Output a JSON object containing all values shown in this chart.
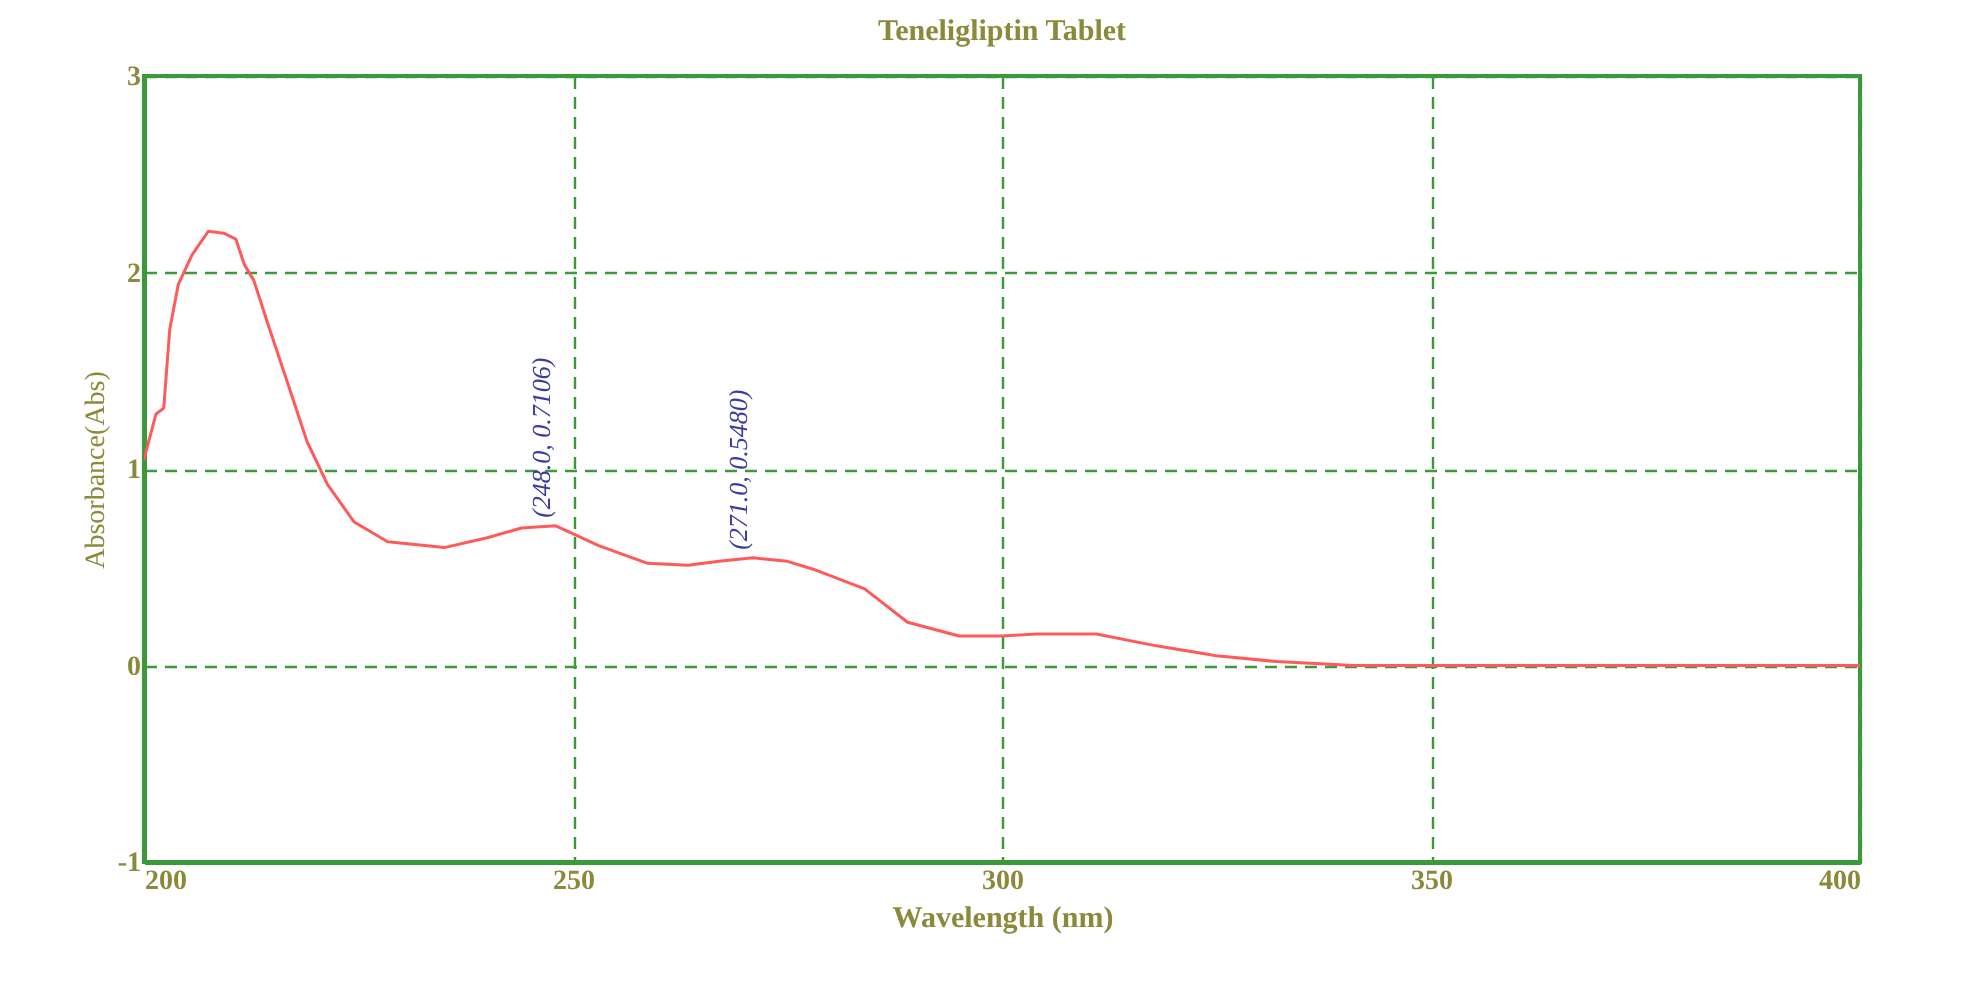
{
  "chart_data": {
    "type": "line",
    "title": "Teneligliptin Tablet",
    "xlabel": "Wavelength (nm)",
    "ylabel": "Absorbance(Abs)",
    "x": [
      200,
      201.4,
      202.3,
      203,
      204,
      205.6,
      207.5,
      209.3,
      210.7,
      211.7,
      212.8,
      214.5,
      216.8,
      219,
      221.4,
      224.5,
      228.4,
      235,
      240,
      244,
      248,
      253,
      258.7,
      263.4,
      267,
      271,
      275,
      278,
      284,
      289,
      295,
      300,
      304,
      311,
      318,
      325,
      332,
      341,
      350,
      375,
      400
    ],
    "series": [
      {
        "color": "#ff5a5a",
        "values": [
          1.05,
          1.28,
          1.31,
          1.71,
          1.94,
          2.09,
          2.21,
          2.2,
          2.17,
          2.04,
          1.96,
          1.73,
          1.43,
          1.14,
          0.92,
          0.73,
          0.63,
          0.6,
          0.65,
          0.7,
          0.7106,
          0.61,
          0.52,
          0.51,
          0.53,
          0.548,
          0.53,
          0.49,
          0.39,
          0.22,
          0.15,
          0.15,
          0.16,
          0.16,
          0.1,
          0.05,
          0.02,
          0.0,
          0.0,
          0.0,
          0.0
        ]
      }
    ],
    "annotations": [
      {
        "text": "(248.0, 0.7106)",
        "x": 248,
        "y": 0.7106
      },
      {
        "text": "(271.0, 0.5480)",
        "x": 271,
        "y": 0.548
      }
    ],
    "xlim": [
      200,
      400
    ],
    "xticks": [
      200,
      250,
      300,
      350,
      400
    ],
    "ylim": [
      -1,
      3
    ],
    "yticks": [
      -1,
      0,
      1,
      2,
      3
    ],
    "grid": true,
    "line_style": "solid",
    "marker": "none"
  }
}
